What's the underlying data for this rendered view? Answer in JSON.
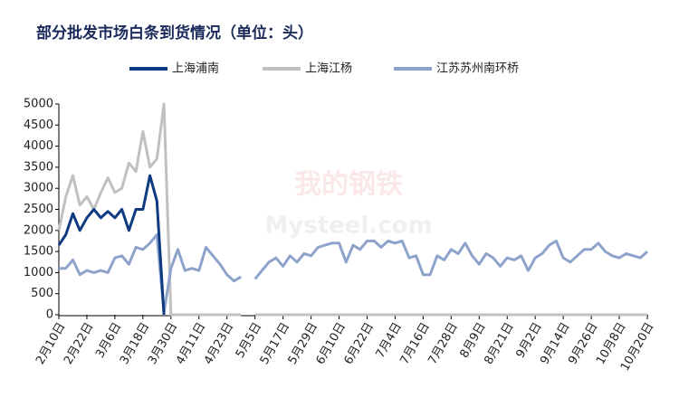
{
  "chart_data": {
    "type": "line",
    "title": "部分批发市场白条到货情况（单位：头）",
    "watermark": [
      "我的钢铁",
      "Mysteel.com"
    ],
    "categories": [
      "2月10日",
      null,
      null,
      null,
      "2月22日",
      null,
      null,
      null,
      "3月6日",
      null,
      null,
      null,
      "3月18日",
      null,
      null,
      null,
      "3月30日",
      null,
      null,
      null,
      "4月11日",
      null,
      null,
      null,
      "4月23日",
      null,
      null,
      null,
      "5月5日",
      null,
      null,
      null,
      "5月17日",
      null,
      null,
      null,
      "5月29日",
      null,
      null,
      null,
      "6月10日",
      null,
      null,
      null,
      "6月22日",
      null,
      null,
      null,
      "7月4日",
      null,
      null,
      null,
      "7月16日",
      null,
      null,
      null,
      "7月28日",
      null,
      null,
      null,
      "8月9日",
      null,
      null,
      null,
      "8月21日",
      null,
      null,
      null,
      "9月2日",
      null,
      null,
      null,
      "9月14日",
      null,
      null,
      null,
      "9月26日",
      null,
      null,
      null,
      "10月8日",
      null,
      null,
      null,
      "10月20日"
    ],
    "ylim": [
      0,
      5000
    ],
    "yticks": [
      0,
      500,
      1000,
      1500,
      2000,
      2500,
      3000,
      3500,
      4000,
      4500,
      5000
    ],
    "grid": false,
    "series": [
      {
        "name": "上海浦南",
        "color": "#0d3a80",
        "width": 3,
        "values": [
          1650,
          1900,
          2400,
          2000,
          2300,
          2500,
          2300,
          2450,
          2300,
          2500,
          2000,
          2500,
          2500,
          3300,
          2700,
          0,
          null,
          null,
          null,
          null,
          null,
          null,
          null,
          null,
          null,
          null,
          null,
          null,
          null,
          null,
          null,
          null,
          null,
          null,
          null,
          null,
          null,
          null,
          null,
          null,
          null,
          null,
          null,
          null,
          null,
          null,
          null,
          null,
          null,
          null,
          null,
          null,
          null,
          null,
          null,
          null,
          null,
          null,
          null,
          null,
          null,
          null,
          null,
          null,
          null,
          null,
          null,
          null,
          null,
          null,
          null,
          null,
          null,
          null,
          null,
          null,
          null,
          null,
          null,
          null,
          null,
          null,
          null,
          null,
          null
        ]
      },
      {
        "name": "上海江杨",
        "color": "#c0c0c0",
        "width": 3,
        "values": [
          2000,
          2800,
          3300,
          2600,
          2800,
          2500,
          2900,
          3250,
          2900,
          3000,
          3600,
          3400,
          4350,
          3500,
          3700,
          5000,
          0,
          0,
          0,
          0,
          0,
          0,
          0,
          0,
          0,
          0,
          0,
          null,
          0,
          0,
          0,
          0,
          0,
          0,
          0,
          0,
          0,
          0,
          0,
          0,
          0,
          0,
          0,
          0,
          0,
          0,
          0,
          0,
          0,
          0,
          0,
          0,
          0,
          0,
          0,
          0,
          0,
          0,
          0,
          0,
          0,
          0,
          0,
          0,
          0,
          0,
          0,
          0,
          0,
          0,
          0,
          0,
          0,
          0,
          0,
          0,
          0,
          0,
          0,
          0,
          0,
          0,
          0,
          0,
          0
        ]
      },
      {
        "name": "江苏苏州南环桥",
        "color": "#8ea3cc",
        "width": 3,
        "values": [
          1100,
          1100,
          1300,
          950,
          1050,
          1000,
          1050,
          1000,
          1350,
          1400,
          1200,
          1600,
          1550,
          1700,
          1900,
          50,
          1100,
          1550,
          1050,
          1100,
          1050,
          1600,
          1400,
          1200,
          950,
          800,
          900,
          null,
          850,
          1050,
          1250,
          1350,
          1150,
          1400,
          1250,
          1450,
          1400,
          1600,
          1650,
          1700,
          1700,
          1250,
          1650,
          1550,
          1750,
          1750,
          1600,
          1750,
          1700,
          1750,
          1350,
          1400,
          950,
          950,
          1400,
          1300,
          1550,
          1450,
          1700,
          1400,
          1200,
          1450,
          1350,
          1150,
          1350,
          1300,
          1400,
          1050,
          1350,
          1450,
          1650,
          1750,
          1350,
          1250,
          1400,
          1550,
          1550,
          1700,
          1500,
          1400,
          1350,
          1450,
          1400,
          1350,
          1500
        ]
      }
    ],
    "legend": "top"
  }
}
